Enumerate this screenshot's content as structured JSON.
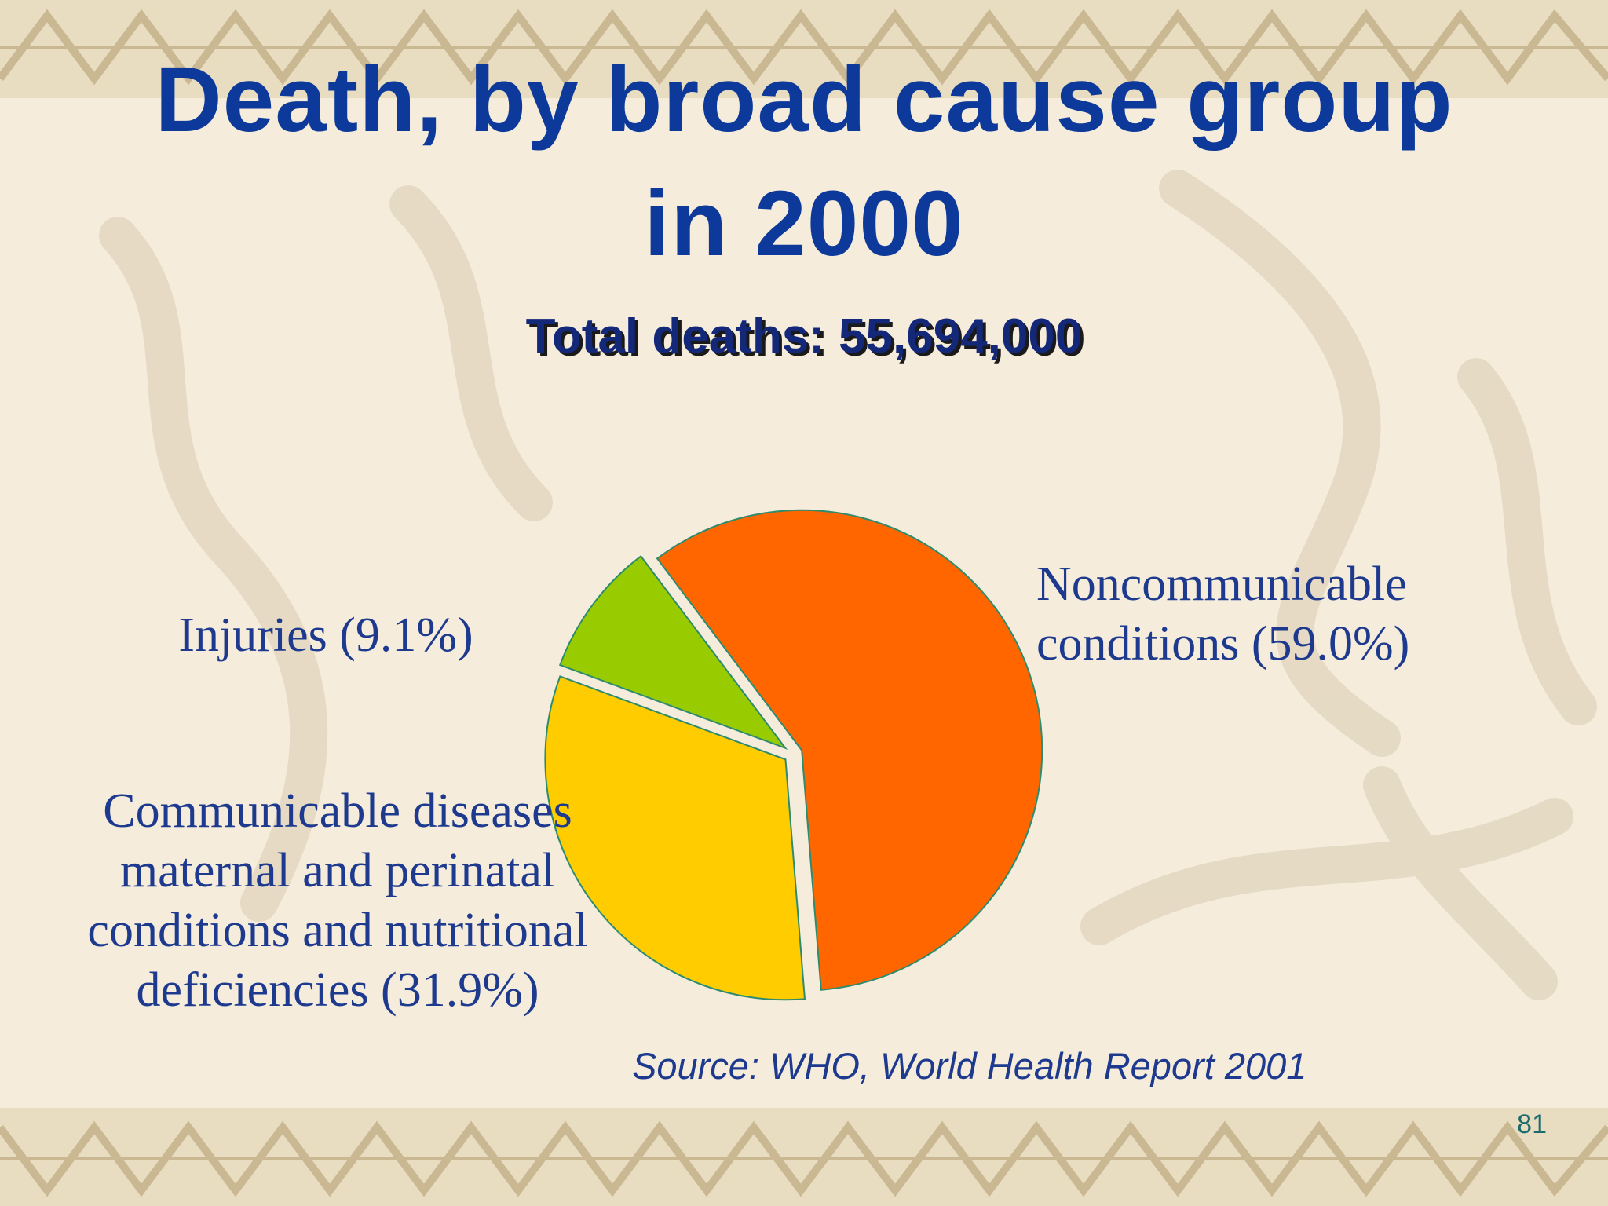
{
  "slide": {
    "title_line1": "Death, by broad cause group",
    "title_line2": "in 2000",
    "subtitle": "Total deaths: 55,694,000",
    "source": "Source:  WHO, World Health Report 2001",
    "page_number": "81"
  },
  "chart_data": {
    "type": "pie",
    "title": "Death, by broad cause group in 2000",
    "subtitle": "Total deaths: 55,694,000",
    "slices": [
      {
        "label": "Noncommunicable conditions (59.0%)",
        "value": 59.0,
        "color": "#ff6600"
      },
      {
        "label": "Communicable diseases maternal and perinatal conditions and nutritional deficiencies (31.9%)",
        "value": 31.9,
        "color": "#ffcc00"
      },
      {
        "label": "Injuries (9.1%)",
        "value": 9.1,
        "color": "#99cc00"
      }
    ],
    "exploded": true,
    "slice_outline_color": "#2e8b6e"
  },
  "colors": {
    "background": "#f5ecdc",
    "title": "#0d3a9a",
    "label": "#1d3a8f"
  }
}
